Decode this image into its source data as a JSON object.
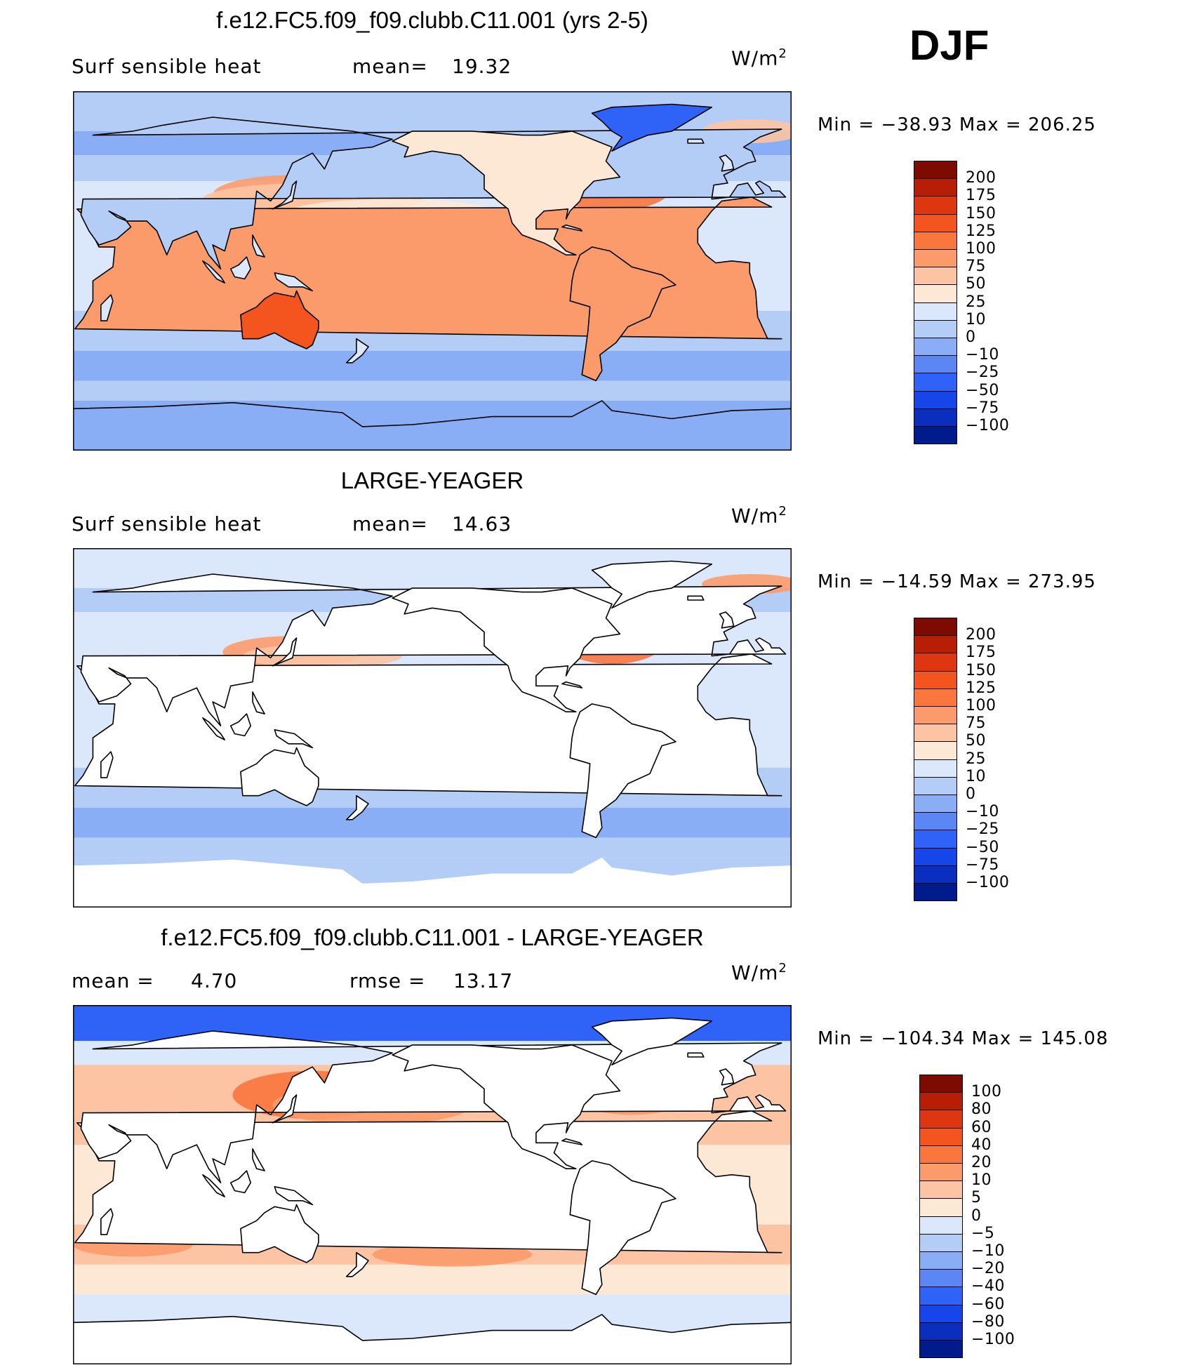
{
  "season": "DJF",
  "colors": {
    "main_scale": [
      "#001b8c",
      "#0a2fbe",
      "#1645ea",
      "#2f62f6",
      "#5a87f4",
      "#8aaef5",
      "#b4cdf7",
      "#dbe8fb",
      "#fde8d6",
      "#fcc4a3",
      "#fb9b6c",
      "#f9763d",
      "#f4541d",
      "#dd3610",
      "#b81e05",
      "#7e0b02"
    ],
    "diff_scale": [
      "#001b8c",
      "#0a2fbe",
      "#1645ea",
      "#2f62f6",
      "#5a87f4",
      "#8aaef5",
      "#b4cdf7",
      "#dbe8fb",
      "#fde8d6",
      "#fcc4a3",
      "#fb9b6c",
      "#f9763d",
      "#f4541d",
      "#dd3610",
      "#b81e05",
      "#7e0b02"
    ],
    "land": "#ffffff",
    "coast": "#000000"
  },
  "chart_data": [
    {
      "type": "heatmap",
      "title": "f.e12.FC5.f09_f09.clubb.C11.001 (yrs 2-5)",
      "variable": "Surf sensible heat",
      "stat_label": "mean=",
      "stat_value": "19.32",
      "units_base": "W/m",
      "units_exp": "2",
      "minmax": "Min = −38.93  Max = 206.25",
      "min": -38.93,
      "max": 206.25,
      "mean": 19.32,
      "levels": [
        "200",
        "175",
        "150",
        "125",
        "100",
        "75",
        "50",
        "25",
        "10",
        "0",
        "−10",
        "−25",
        "−50",
        "−75",
        "−100"
      ],
      "land_masked": false
    },
    {
      "type": "heatmap",
      "title": "LARGE-YEAGER",
      "variable": "Surf sensible heat",
      "stat_label": "mean=",
      "stat_value": "14.63",
      "units_base": "W/m",
      "units_exp": "2",
      "minmax": "Min = −14.59  Max = 273.95",
      "min": -14.59,
      "max": 273.95,
      "mean": 14.63,
      "levels": [
        "200",
        "175",
        "150",
        "125",
        "100",
        "75",
        "50",
        "25",
        "10",
        "0",
        "−10",
        "−25",
        "−50",
        "−75",
        "−100"
      ],
      "land_masked": true
    },
    {
      "type": "heatmap",
      "title": "f.e12.FC5.f09_f09.clubb.C11.001 - LARGE-YEAGER",
      "stat_label": "mean =",
      "stat_value": "4.70",
      "stat2_label": "rmse =",
      "stat2_value": "13.17",
      "units_base": "W/m",
      "units_exp": "2",
      "minmax": "Min = −104.34  Max = 145.08",
      "min": -104.34,
      "max": 145.08,
      "mean": 4.7,
      "rmse": 13.17,
      "levels": [
        "100",
        "80",
        "60",
        "40",
        "20",
        "10",
        "5",
        "0",
        "−5",
        "−10",
        "−20",
        "−40",
        "−60",
        "−80",
        "−100"
      ],
      "land_masked": true
    }
  ]
}
